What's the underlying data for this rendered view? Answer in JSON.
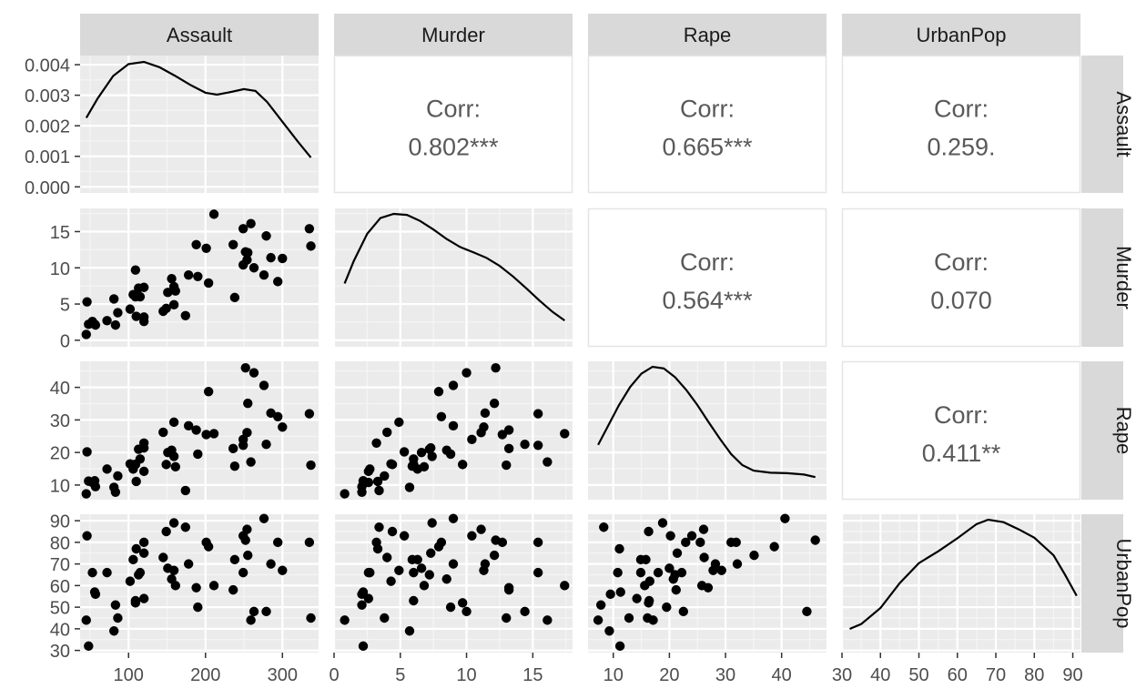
{
  "chart_data": {
    "type": "scatter",
    "variables": [
      "Assault",
      "Murder",
      "Rape",
      "UrbanPop"
    ],
    "corr_label": "Corr:",
    "correlations": [
      {
        "row": "Assault",
        "col": "Murder",
        "text": "0.802***"
      },
      {
        "row": "Assault",
        "col": "Rape",
        "text": "0.665***"
      },
      {
        "row": "Assault",
        "col": "UrbanPop",
        "text": "0.259."
      },
      {
        "row": "Murder",
        "col": "Rape",
        "text": "0.564***"
      },
      {
        "row": "Murder",
        "col": "UrbanPop",
        "text": "0.070"
      },
      {
        "row": "Rape",
        "col": "UrbanPop",
        "text": "0.411**"
      }
    ],
    "x_axes": {
      "Assault": {
        "lim": [
          37,
          347
        ],
        "ticks": [
          100,
          200,
          300
        ]
      },
      "Murder": {
        "lim": [
          0,
          18
        ],
        "ticks": [
          0,
          5,
          10,
          15
        ]
      },
      "Rape": {
        "lim": [
          5.5,
          48
        ],
        "ticks": [
          10,
          20,
          30,
          40
        ]
      },
      "UrbanPop": {
        "lim": [
          30,
          92
        ],
        "ticks": [
          30,
          40,
          50,
          60,
          70,
          80,
          90
        ]
      }
    },
    "y_axes": {
      "Assault": {
        "lim": [
          -0.0002,
          0.0043
        ],
        "ticks": [
          0.0,
          0.001,
          0.002,
          0.003,
          0.004
        ],
        "tick_labels": [
          "0.000",
          "0.001",
          "0.002",
          "0.003",
          "0.004"
        ]
      },
      "Murder": {
        "lim": [
          -0.9,
          18.2
        ],
        "ticks": [
          0,
          5,
          10,
          15
        ]
      },
      "Rape": {
        "lim": [
          5.5,
          48
        ],
        "ticks": [
          10,
          20,
          30,
          40
        ]
      },
      "UrbanPop": {
        "lim": [
          29,
          93
        ],
        "ticks": [
          30,
          40,
          50,
          60,
          70,
          80,
          90
        ]
      }
    },
    "observations": {
      "Murder": [
        13.2,
        10,
        8.1,
        8.8,
        9,
        7.9,
        3.3,
        5.9,
        15.4,
        17.4,
        5.3,
        2.6,
        10.4,
        7.2,
        2.2,
        6,
        9.7,
        15.4,
        2.1,
        11.3,
        4.4,
        12.1,
        2.7,
        16.1,
        9,
        6,
        4.3,
        12.2,
        2.1,
        7.4,
        11.4,
        11.1,
        13,
        0.8,
        7.3,
        6.6,
        4.9,
        6.3,
        3.4,
        14.4,
        3.8,
        13.2,
        12.7,
        3.2,
        2.2,
        8.5,
        4,
        5.7,
        2.6,
        6.8
      ],
      "Assault": [
        236,
        263,
        294,
        190,
        276,
        204,
        110,
        238,
        335,
        211,
        46,
        120,
        249,
        113,
        56,
        115,
        109,
        249,
        83,
        300,
        149,
        255,
        72,
        259,
        178,
        109,
        102,
        252,
        57,
        159,
        285,
        254,
        337,
        45,
        120,
        151,
        159,
        106,
        174,
        279,
        86,
        188,
        201,
        120,
        48,
        156,
        145,
        81,
        53,
        161
      ],
      "UrbanPop": [
        58,
        48,
        80,
        50,
        91,
        78,
        77,
        72,
        80,
        60,
        83,
        54,
        83,
        65,
        57,
        66,
        52,
        66,
        51,
        67,
        85,
        74,
        66,
        44,
        70,
        53,
        62,
        81,
        56,
        89,
        70,
        86,
        45,
        44,
        75,
        68,
        67,
        72,
        87,
        48,
        45,
        59,
        80,
        80,
        32,
        63,
        73,
        39,
        66,
        60
      ],
      "Rape": [
        21.2,
        44.5,
        31,
        19.5,
        40.6,
        38.7,
        11.1,
        15.8,
        31.9,
        25.8,
        20.2,
        14.2,
        24,
        21,
        11.3,
        18,
        16.3,
        22.2,
        7.8,
        27.8,
        16.3,
        35.1,
        14.9,
        17.1,
        28.2,
        16.4,
        16.5,
        46,
        9.5,
        18.8,
        32.1,
        26.1,
        16.1,
        7.3,
        21.4,
        20,
        29.3,
        14.9,
        8.3,
        22.5,
        12.8,
        26.9,
        25.5,
        22.9,
        11.2,
        20.7,
        26.2,
        9.3,
        10.8,
        15.6
      ]
    },
    "densities": {
      "Assault": {
        "x": [
          45,
          60,
          80,
          100,
          120,
          140,
          160,
          180,
          200,
          215,
          230,
          250,
          265,
          280,
          300,
          320,
          337
        ],
        "y": [
          0.00226,
          0.0029,
          0.00363,
          0.00402,
          0.00409,
          0.00392,
          0.00364,
          0.00334,
          0.00308,
          0.00302,
          0.00309,
          0.0032,
          0.00314,
          0.00278,
          0.00213,
          0.00148,
          0.00096
        ]
      },
      "Murder": {
        "x": [
          0.8,
          1.5,
          2.5,
          3.5,
          4.5,
          5.5,
          6.5,
          7.5,
          8.5,
          9.5,
          10.5,
          11.5,
          12.5,
          13.5,
          14.5,
          15.5,
          16.5,
          17.4
        ],
        "y": [
          0.0573,
          0.0791,
          0.105,
          0.1201,
          0.1241,
          0.1231,
          0.1173,
          0.1091,
          0.1,
          0.0924,
          0.0873,
          0.0819,
          0.0742,
          0.0641,
          0.0527,
          0.0409,
          0.0299,
          0.0218
        ]
      },
      "Rape": {
        "x": [
          7.3,
          9,
          11,
          13,
          15,
          17,
          19,
          21,
          23,
          25,
          27,
          29,
          31,
          33,
          35,
          38,
          41,
          44,
          46
        ],
        "y": [
          0.0222,
          0.0301,
          0.0393,
          0.0472,
          0.053,
          0.056,
          0.0553,
          0.0515,
          0.046,
          0.0394,
          0.032,
          0.0248,
          0.0182,
          0.0134,
          0.011,
          0.0101,
          0.0099,
          0.0093,
          0.0082
        ]
      },
      "UrbanPop": {
        "x": [
          32,
          35,
          40,
          45,
          50,
          55,
          60,
          65,
          68,
          72,
          76,
          80,
          85,
          88,
          91
        ],
        "y": [
          0.0041,
          0.0051,
          0.0084,
          0.0135,
          0.0176,
          0.02,
          0.0227,
          0.0256,
          0.0265,
          0.026,
          0.0245,
          0.0228,
          0.0192,
          0.0152,
          0.0109
        ]
      }
    }
  },
  "colors": {
    "panel_bg": "#ebebeb",
    "grid_major": "#ffffff",
    "strip_bg": "#d9d9d9",
    "corr_text": "#595959",
    "axis_text": "#4d4d4d",
    "strip_text": "#1a1a1a",
    "point": "#000000",
    "line": "#000000",
    "corr_border": "#e5e5e5"
  }
}
